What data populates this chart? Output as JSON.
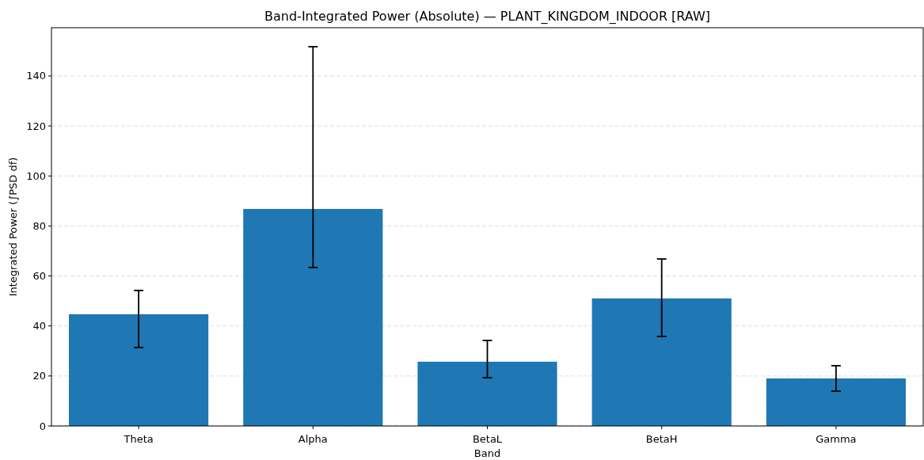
{
  "chart_data": {
    "type": "bar",
    "title": "Band-Integrated Power (Absolute) — PLANT_KINGDOM_INDOOR [RAW]",
    "xlabel": "Band",
    "ylabel": "Integrated Power (∫PSD df)",
    "categories": [
      "Theta",
      "Alpha",
      "BetaL",
      "BetaH",
      "Gamma"
    ],
    "values": [
      44.7,
      86.8,
      25.7,
      51.0,
      19.0
    ],
    "errors": [
      [
        31.4,
        54.2
      ],
      [
        63.4,
        151.7
      ],
      [
        19.3,
        34.2
      ],
      [
        35.8,
        66.8
      ],
      [
        13.9,
        24.1
      ]
    ],
    "color": "#1f77b4",
    "ylim": [
      0,
      159.3
    ],
    "yticks": [
      0,
      20,
      40,
      60,
      80,
      100,
      120,
      140
    ],
    "grid": "y"
  }
}
